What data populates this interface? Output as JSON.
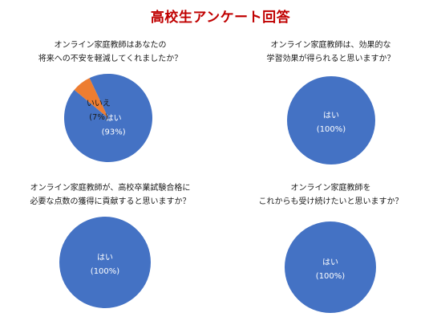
{
  "page": {
    "title": "高校生アンケート回答"
  },
  "colors": {
    "title": "#c00000",
    "yes": "#4472c4",
    "no": "#ed7d31"
  },
  "chart_data": [
    {
      "type": "pie",
      "title_lines": [
        "オンライン家庭教師はあなたの",
        "将来への不安を軽減してくれましたか？"
      ],
      "slices": [
        {
          "label": "はい",
          "value": 93,
          "value_text": "(93%)",
          "color": "#4472c4"
        },
        {
          "label": "いいえ",
          "value": 7,
          "value_text": "(7%)",
          "color": "#ed7d31"
        }
      ]
    },
    {
      "type": "pie",
      "title_lines": [
        "オンライン家庭教師は、効果的な",
        "学習効果が得られると思いますか？"
      ],
      "slices": [
        {
          "label": "はい",
          "value": 100,
          "value_text": "(100%)",
          "color": "#4472c4"
        }
      ]
    },
    {
      "type": "pie",
      "title_lines": [
        "オンライン家庭教師が、高校卒業試験合格に",
        "必要な点数の獲得に貢献すると思いますか？"
      ],
      "slices": [
        {
          "label": "はい",
          "value": 100,
          "value_text": "(100%)",
          "color": "#4472c4"
        }
      ]
    },
    {
      "type": "pie",
      "title_lines": [
        "オンライン家庭教師を",
        "これからも受け続けたいと思いますか？"
      ],
      "slices": [
        {
          "label": "はい",
          "value": 100,
          "value_text": "(100%)",
          "color": "#4472c4"
        }
      ]
    }
  ]
}
